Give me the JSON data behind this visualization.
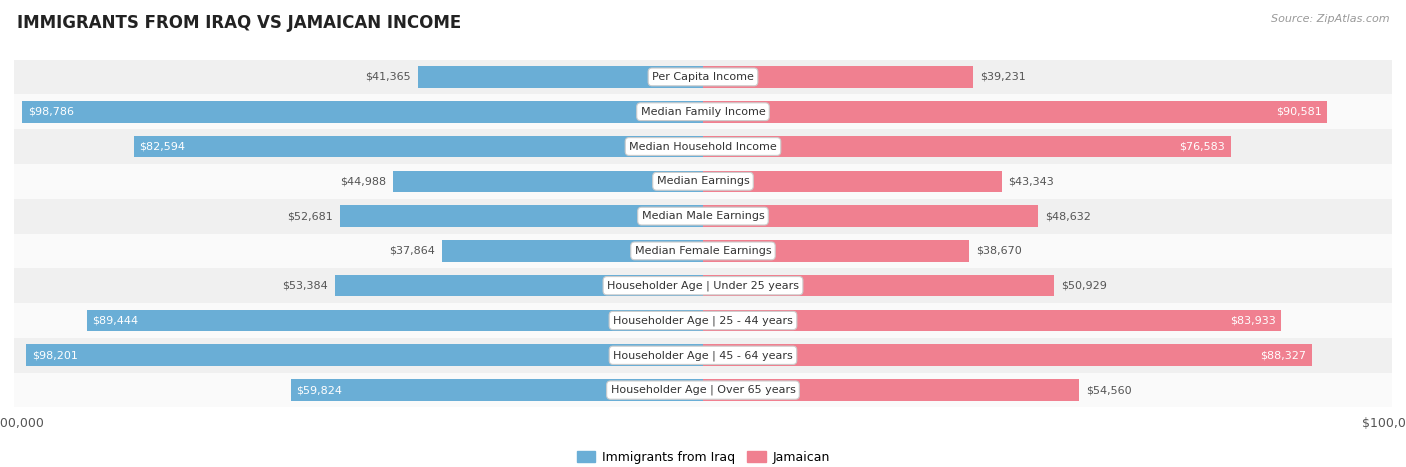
{
  "title": "IMMIGRANTS FROM IRAQ VS JAMAICAN INCOME",
  "source": "Source: ZipAtlas.com",
  "categories": [
    "Per Capita Income",
    "Median Family Income",
    "Median Household Income",
    "Median Earnings",
    "Median Male Earnings",
    "Median Female Earnings",
    "Householder Age | Under 25 years",
    "Householder Age | 25 - 44 years",
    "Householder Age | 45 - 64 years",
    "Householder Age | Over 65 years"
  ],
  "iraq_values": [
    41365,
    98786,
    82594,
    44988,
    52681,
    37864,
    53384,
    89444,
    98201,
    59824
  ],
  "jamaican_values": [
    39231,
    90581,
    76583,
    43343,
    48632,
    38670,
    50929,
    83933,
    88327,
    54560
  ],
  "iraq_labels": [
    "$41,365",
    "$98,786",
    "$82,594",
    "$44,988",
    "$52,681",
    "$37,864",
    "$53,384",
    "$89,444",
    "$98,201",
    "$59,824"
  ],
  "jamaican_labels": [
    "$39,231",
    "$90,581",
    "$76,583",
    "$43,343",
    "$48,632",
    "$38,670",
    "$50,929",
    "$83,933",
    "$88,327",
    "$54,560"
  ],
  "max_value": 100000,
  "iraq_color": "#6aaed6",
  "jamaican_color": "#f08090",
  "iraq_light_color": "#aecde8",
  "jamaican_light_color": "#f8b8c8",
  "row_bg_odd": "#f0f0f0",
  "row_bg_even": "#fafafa",
  "label_threshold": 0.55,
  "bar_height": 0.62,
  "figsize": [
    14.06,
    4.67
  ],
  "dpi": 100,
  "legend_iraq": "Immigrants from Iraq",
  "legend_jamaican": "Jamaican"
}
